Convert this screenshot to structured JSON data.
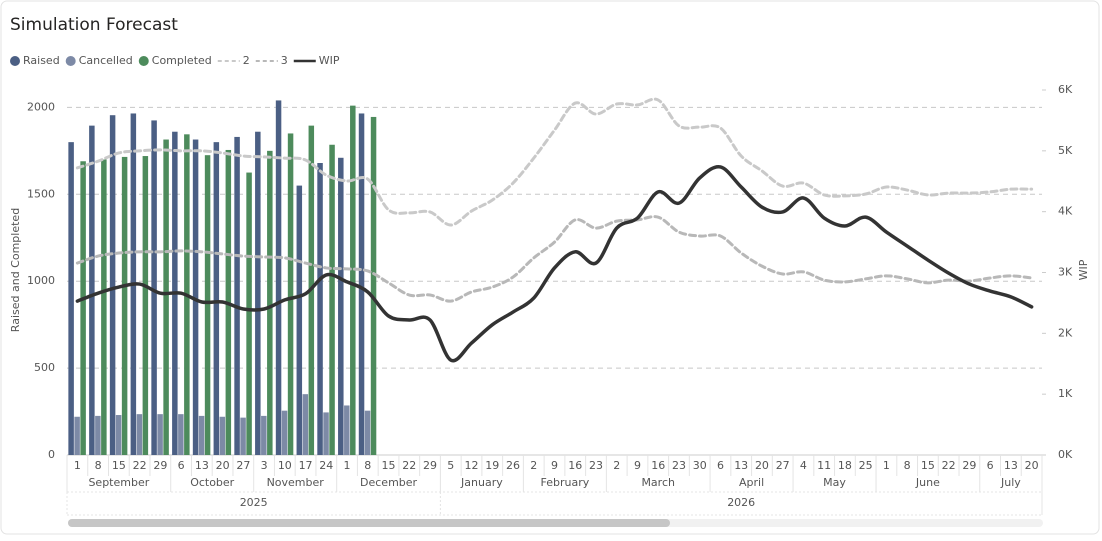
{
  "chart_data": {
    "type": "combo",
    "title": "Simulation Forecast",
    "y_label": "Raised and Completed",
    "y2_label": "WIP",
    "ylim": [
      0,
      2100
    ],
    "yticks": [
      0,
      500,
      1000,
      1500,
      2000
    ],
    "y2lim": [
      0,
      6000
    ],
    "y2ticks": [
      {
        "value": 0,
        "label": "0K"
      },
      {
        "value": 1000,
        "label": "1K"
      },
      {
        "value": 2000,
        "label": "2K"
      },
      {
        "value": 3000,
        "label": "3K"
      },
      {
        "value": 4000,
        "label": "4K"
      },
      {
        "value": 5000,
        "label": "5K"
      },
      {
        "value": 6000,
        "label": "6K"
      }
    ],
    "grid": true,
    "legend": "top-left",
    "x_axis": [
      {
        "year": "2025",
        "months": [
          {
            "month": "September",
            "days": [
              "1",
              "8",
              "15",
              "22",
              "29"
            ]
          },
          {
            "month": "October",
            "days": [
              "6",
              "13",
              "20",
              "27"
            ]
          },
          {
            "month": "November",
            "days": [
              "3",
              "10",
              "17",
              "24"
            ]
          },
          {
            "month": "December",
            "days": [
              "1",
              "8",
              "15",
              "22",
              "29"
            ]
          }
        ]
      },
      {
        "year": "2026",
        "months": [
          {
            "month": "January",
            "days": [
              "5",
              "12",
              "19",
              "26"
            ]
          },
          {
            "month": "February",
            "days": [
              "2",
              "9",
              "16",
              "23"
            ]
          },
          {
            "month": "March",
            "days": [
              "2",
              "9",
              "16",
              "23",
              "30"
            ]
          },
          {
            "month": "April",
            "days": [
              "6",
              "13",
              "20",
              "27"
            ]
          },
          {
            "month": "May",
            "days": [
              "4",
              "11",
              "18",
              "25"
            ]
          },
          {
            "month": "June",
            "days": [
              "1",
              "8",
              "15",
              "22",
              "29"
            ]
          },
          {
            "month": "July",
            "days": [
              "6",
              "13",
              "20"
            ]
          }
        ]
      }
    ],
    "series": [
      {
        "name": "Raised",
        "kind": "bar",
        "color": "#4b5f84",
        "values": [
          1800,
          1895,
          1955,
          1965,
          1925,
          1860,
          1815,
          1800,
          1830,
          1860,
          2040,
          1550,
          1680,
          1710,
          1965,
          null,
          null,
          null,
          null,
          null,
          null,
          null,
          null,
          null,
          null,
          null,
          null,
          null,
          null,
          null,
          null,
          null,
          null,
          null,
          null,
          null,
          null,
          null,
          null,
          null,
          null,
          null,
          null,
          null,
          null,
          null,
          null
        ]
      },
      {
        "name": "Cancelled",
        "kind": "bar",
        "color": "#7d8aa6",
        "values": [
          220,
          225,
          230,
          235,
          235,
          235,
          225,
          220,
          215,
          225,
          255,
          350,
          245,
          285,
          255,
          null,
          null,
          null,
          null,
          null,
          null,
          null,
          null,
          null,
          null,
          null,
          null,
          null,
          null,
          null,
          null,
          null,
          null,
          null,
          null,
          null,
          null,
          null,
          null,
          null,
          null,
          null,
          null,
          null,
          null,
          null,
          null
        ]
      },
      {
        "name": "Completed",
        "kind": "bar",
        "color": "#4d8b5c",
        "values": [
          1690,
          1700,
          1715,
          1720,
          1815,
          1845,
          1725,
          1755,
          1625,
          1750,
          1850,
          1895,
          1785,
          2010,
          1945,
          null,
          null,
          null,
          null,
          null,
          null,
          null,
          null,
          null,
          null,
          null,
          null,
          null,
          null,
          null,
          null,
          null,
          null,
          null,
          null,
          null,
          null,
          null,
          null,
          null,
          null,
          null,
          null,
          null,
          null,
          null,
          null
        ]
      },
      {
        "name": "2",
        "kind": "dashed",
        "axis": "y2",
        "color": "#c9c9c9",
        "values": [
          4720,
          4830,
          4965,
          5000,
          5015,
          5000,
          5000,
          4965,
          4915,
          4900,
          4880,
          4850,
          4600,
          4505,
          4535,
          4030,
          3980,
          3995,
          3780,
          4010,
          4190,
          4470,
          4880,
          5340,
          5785,
          5605,
          5770,
          5755,
          5835,
          5410,
          5390,
          5375,
          4915,
          4670,
          4420,
          4470,
          4275,
          4260,
          4290,
          4405,
          4355,
          4275,
          4305,
          4305,
          4325,
          4370,
          4370
        ]
      },
      {
        "name": "3",
        "kind": "dashed",
        "axis": "y2",
        "color": "#b8b8b8",
        "values": [
          3155,
          3270,
          3320,
          3340,
          3340,
          3355,
          3340,
          3305,
          3270,
          3255,
          3240,
          3155,
          3075,
          3060,
          3025,
          2830,
          2630,
          2630,
          2530,
          2680,
          2760,
          2925,
          3240,
          3500,
          3865,
          3730,
          3845,
          3865,
          3910,
          3665,
          3600,
          3600,
          3320,
          3105,
          2975,
          3010,
          2875,
          2845,
          2895,
          2945,
          2895,
          2830,
          2875,
          2860,
          2910,
          2945,
          2910
        ]
      },
      {
        "name": "WIP",
        "kind": "line",
        "axis": "y2",
        "color": "#333333",
        "values": [
          2530,
          2660,
          2760,
          2810,
          2660,
          2660,
          2515,
          2515,
          2400,
          2400,
          2550,
          2650,
          2960,
          2845,
          2680,
          2285,
          2220,
          2220,
          1560,
          1840,
          2140,
          2350,
          2580,
          3075,
          3340,
          3155,
          3730,
          3895,
          4325,
          4140,
          4555,
          4735,
          4405,
          4075,
          3995,
          4225,
          3895,
          3765,
          3910,
          3665,
          3435,
          3205,
          2990,
          2810,
          2695,
          2600,
          2435
        ]
      }
    ]
  }
}
